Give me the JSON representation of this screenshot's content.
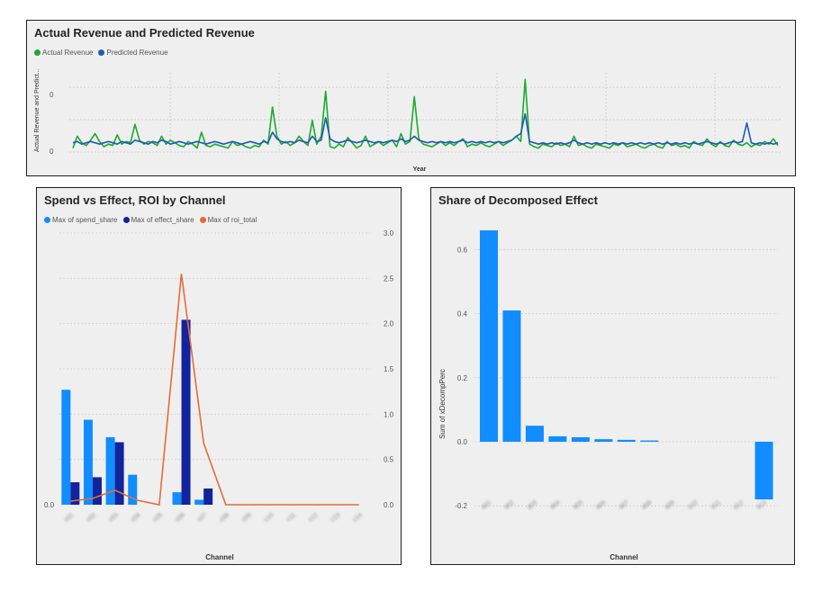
{
  "charts": {
    "revenue": {
      "title": "Actual Revenue and Predicted Revenue",
      "legend": [
        {
          "label": "Actual Revenue",
          "color": "#1aab2d"
        },
        {
          "label": "Predicted Revenue",
          "color": "#1f5bb5"
        }
      ],
      "xlabel": "Year",
      "ylabel": "Actual Revenue and Predict...",
      "yticks": [
        "0",
        "0"
      ]
    },
    "spend": {
      "title": "Spend vs Effect, ROI by Channel",
      "legend": [
        {
          "label": "Max of spend_share",
          "color": "#118dff"
        },
        {
          "label": "Max of effect_share",
          "color": "#12239e"
        },
        {
          "label": "Max of roi_total",
          "color": "#e66c37"
        }
      ],
      "xlabel": "Channel",
      "left_axis_label": "0.0",
      "right_ticks": [
        "0.0",
        "0.5",
        "1.0",
        "1.5",
        "2.0",
        "2.5",
        "3.0"
      ]
    },
    "share": {
      "title": "Share of Decomposed Effect",
      "xlabel": "Channel",
      "ylabel": "Sum of xDecompPerc",
      "yticks": [
        "-0.2",
        "0.0",
        "0.2",
        "0.4",
        "0.6"
      ],
      "bar_color": "#118dff"
    }
  },
  "chart_data": [
    {
      "type": "line",
      "title": "Actual Revenue and Predicted Revenue",
      "xlabel": "Year",
      "ylabel": "Actual Revenue and Predict...",
      "grid": true,
      "legend_position": "top-left",
      "series": [
        {
          "name": "Actual Revenue",
          "color": "#1aab2d",
          "values": [
            0.03,
            0.12,
            0.07,
            0.05,
            0.09,
            0.14,
            0.08,
            0.04,
            0.06,
            0.05,
            0.13,
            0.06,
            0.08,
            0.07,
            0.21,
            0.09,
            0.06,
            0.08,
            0.07,
            0.05,
            0.12,
            0.06,
            0.09,
            0.07,
            0.05,
            0.04,
            0.08,
            0.06,
            0.03,
            0.15,
            0.05,
            0.04,
            0.06,
            0.05,
            0.04,
            0.03,
            0.08,
            0.05,
            0.06,
            0.04,
            0.03,
            0.05,
            0.04,
            0.09,
            0.06,
            0.34,
            0.12,
            0.06,
            0.08,
            0.05,
            0.07,
            0.12,
            0.08,
            0.05,
            0.24,
            0.06,
            0.12,
            0.46,
            0.04,
            0.03,
            0.06,
            0.04,
            0.11,
            0.07,
            0.03,
            0.05,
            0.12,
            0.04,
            0.06,
            0.08,
            0.05,
            0.07,
            0.09,
            0.04,
            0.14,
            0.06,
            0.08,
            0.42,
            0.1,
            0.06,
            0.05,
            0.04,
            0.06,
            0.08,
            0.05,
            0.07,
            0.05,
            0.08,
            0.1,
            0.04,
            0.06,
            0.05,
            0.07,
            0.05,
            0.04,
            0.06,
            0.08,
            0.05,
            0.07,
            0.09,
            0.12,
            0.08,
            0.55,
            0.06,
            0.04,
            0.03,
            0.06,
            0.05,
            0.04,
            0.07,
            0.05,
            0.06,
            0.04,
            0.12,
            0.05,
            0.06,
            0.04,
            0.03,
            0.06,
            0.05,
            0.04,
            0.03,
            0.06,
            0.05,
            0.07,
            0.04,
            0.05,
            0.06,
            0.04,
            0.03,
            0.05,
            0.06,
            0.04,
            0.03,
            0.08,
            0.05,
            0.06,
            0.04,
            0.05,
            0.03,
            0.08,
            0.06,
            0.05,
            0.1,
            0.06,
            0.04,
            0.08,
            0.05,
            0.04,
            0.09,
            0.06,
            0.05,
            0.07,
            0.04,
            0.06,
            0.05,
            0.08,
            0.06,
            0.1,
            0.05
          ]
        },
        {
          "name": "Predicted Revenue",
          "color": "#1f5bb5",
          "values": [
            0.07,
            0.08,
            0.06,
            0.07,
            0.08,
            0.07,
            0.06,
            0.07,
            0.08,
            0.07,
            0.06,
            0.08,
            0.07,
            0.06,
            0.09,
            0.08,
            0.07,
            0.06,
            0.08,
            0.07,
            0.09,
            0.08,
            0.06,
            0.07,
            0.08,
            0.07,
            0.06,
            0.07,
            0.08,
            0.07,
            0.06,
            0.07,
            0.08,
            0.07,
            0.06,
            0.07,
            0.08,
            0.07,
            0.06,
            0.07,
            0.08,
            0.07,
            0.06,
            0.08,
            0.07,
            0.15,
            0.1,
            0.08,
            0.07,
            0.08,
            0.07,
            0.09,
            0.08,
            0.07,
            0.12,
            0.08,
            0.09,
            0.26,
            0.1,
            0.08,
            0.07,
            0.08,
            0.09,
            0.08,
            0.07,
            0.08,
            0.09,
            0.08,
            0.07,
            0.08,
            0.07,
            0.08,
            0.09,
            0.08,
            0.1,
            0.08,
            0.09,
            0.12,
            0.09,
            0.08,
            0.07,
            0.08,
            0.07,
            0.08,
            0.07,
            0.08,
            0.07,
            0.08,
            0.09,
            0.07,
            0.08,
            0.07,
            0.08,
            0.07,
            0.08,
            0.07,
            0.08,
            0.07,
            0.08,
            0.09,
            0.12,
            0.14,
            0.29,
            0.08,
            0.07,
            0.06,
            0.07,
            0.06,
            0.07,
            0.06,
            0.07,
            0.06,
            0.07,
            0.09,
            0.07,
            0.06,
            0.07,
            0.06,
            0.07,
            0.06,
            0.07,
            0.06,
            0.07,
            0.06,
            0.07,
            0.06,
            0.07,
            0.06,
            0.07,
            0.06,
            0.07,
            0.06,
            0.07,
            0.06,
            0.07,
            0.06,
            0.07,
            0.06,
            0.07,
            0.06,
            0.07,
            0.06,
            0.07,
            0.08,
            0.07,
            0.06,
            0.07,
            0.06,
            0.07,
            0.08,
            0.07,
            0.08,
            0.22,
            0.07,
            0.06,
            0.07,
            0.06,
            0.07,
            0.06,
            0.07
          ]
        }
      ]
    },
    {
      "type": "bar",
      "title": "Spend vs Effect, ROI by Channel",
      "xlabel": "Channel",
      "categories": [
        "c01",
        "c02",
        "c03",
        "c04",
        "c05",
        "c06",
        "c07",
        "c08",
        "c09",
        "c10",
        "c11",
        "c12",
        "c13",
        "c14"
      ],
      "legend_position": "top-left",
      "series": [
        {
          "name": "Max of spend_share",
          "color": "#118dff",
          "axis": "left",
          "values": [
            0.46,
            0.34,
            0.27,
            0.12,
            0.0,
            0.05,
            0.02,
            0,
            0,
            0,
            0,
            0,
            0,
            0
          ]
        },
        {
          "name": "Max of effect_share",
          "color": "#12239e",
          "axis": "left",
          "values": [
            0.09,
            0.11,
            0.25,
            0.0,
            0.0,
            0.74,
            0.065,
            0,
            0,
            0,
            0,
            0,
            0,
            0
          ]
        },
        {
          "name": "Max of roi_total",
          "color": "#e66c37",
          "axis": "right",
          "kind": "line",
          "values": [
            0.04,
            0.07,
            0.16,
            0.05,
            0.0,
            2.55,
            0.68,
            0,
            0,
            0,
            0,
            0,
            0,
            0
          ]
        }
      ],
      "ylim_left": [
        0,
        1
      ],
      "ylim_right": [
        0,
        3.0
      ]
    },
    {
      "type": "bar",
      "title": "Share of Decomposed Effect",
      "xlabel": "Channel",
      "ylabel": "Sum of xDecompPerc",
      "categories": [
        "d01",
        "d02",
        "d03",
        "d04",
        "d05",
        "d06",
        "d07",
        "d08",
        "d09",
        "d10",
        "d11",
        "d12",
        "d13"
      ],
      "values": [
        0.66,
        0.41,
        0.05,
        0.017,
        0.014,
        0.008,
        0.006,
        0.004,
        0.0,
        0.0,
        0.0,
        0.0,
        -0.18
      ],
      "ylim": [
        -0.2,
        0.7
      ],
      "grid": true
    }
  ]
}
